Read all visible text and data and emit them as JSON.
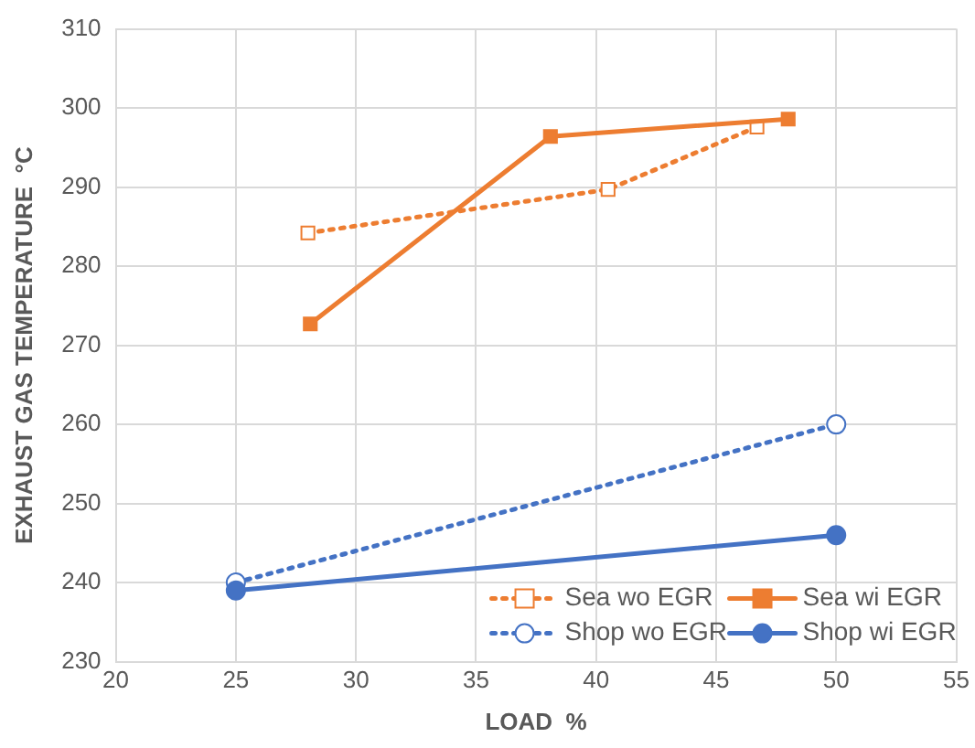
{
  "chart_data": {
    "type": "line",
    "xlabel": "LOAD  %",
    "ylabel": "EXHAUST GAS TEMPERATURE  °C",
    "xlim": [
      20,
      55
    ],
    "xticks": [
      20,
      25,
      30,
      35,
      40,
      45,
      50,
      55
    ],
    "ylim": [
      230,
      310
    ],
    "yticks": [
      230,
      240,
      250,
      260,
      270,
      280,
      290,
      300,
      310
    ],
    "grid": true,
    "legend": "bottom right",
    "series": [
      {
        "name": "Sea wo EGR",
        "color": "#ed7d31",
        "x": [
          28.0,
          40.5,
          46.7
        ],
        "values": [
          284.2,
          289.7,
          297.6
        ],
        "marker": "square",
        "line_style": "dotted"
      },
      {
        "name": "Sea wi EGR",
        "color": "#ed7d31",
        "x": [
          28.1,
          38.1,
          48.0
        ],
        "values": [
          272.7,
          296.4,
          298.6
        ],
        "marker": "square",
        "line_style": "solid"
      },
      {
        "name": "Shop wo EGR",
        "color": "#4472c4",
        "x": [
          25,
          50
        ],
        "values": [
          240,
          260
        ],
        "marker": "circle",
        "line_style": "dotted"
      },
      {
        "name": "Shop wi EGR",
        "color": "#4472c4",
        "x": [
          25,
          50
        ],
        "values": [
          239,
          246
        ],
        "marker": "circle",
        "line_style": "solid"
      }
    ]
  }
}
